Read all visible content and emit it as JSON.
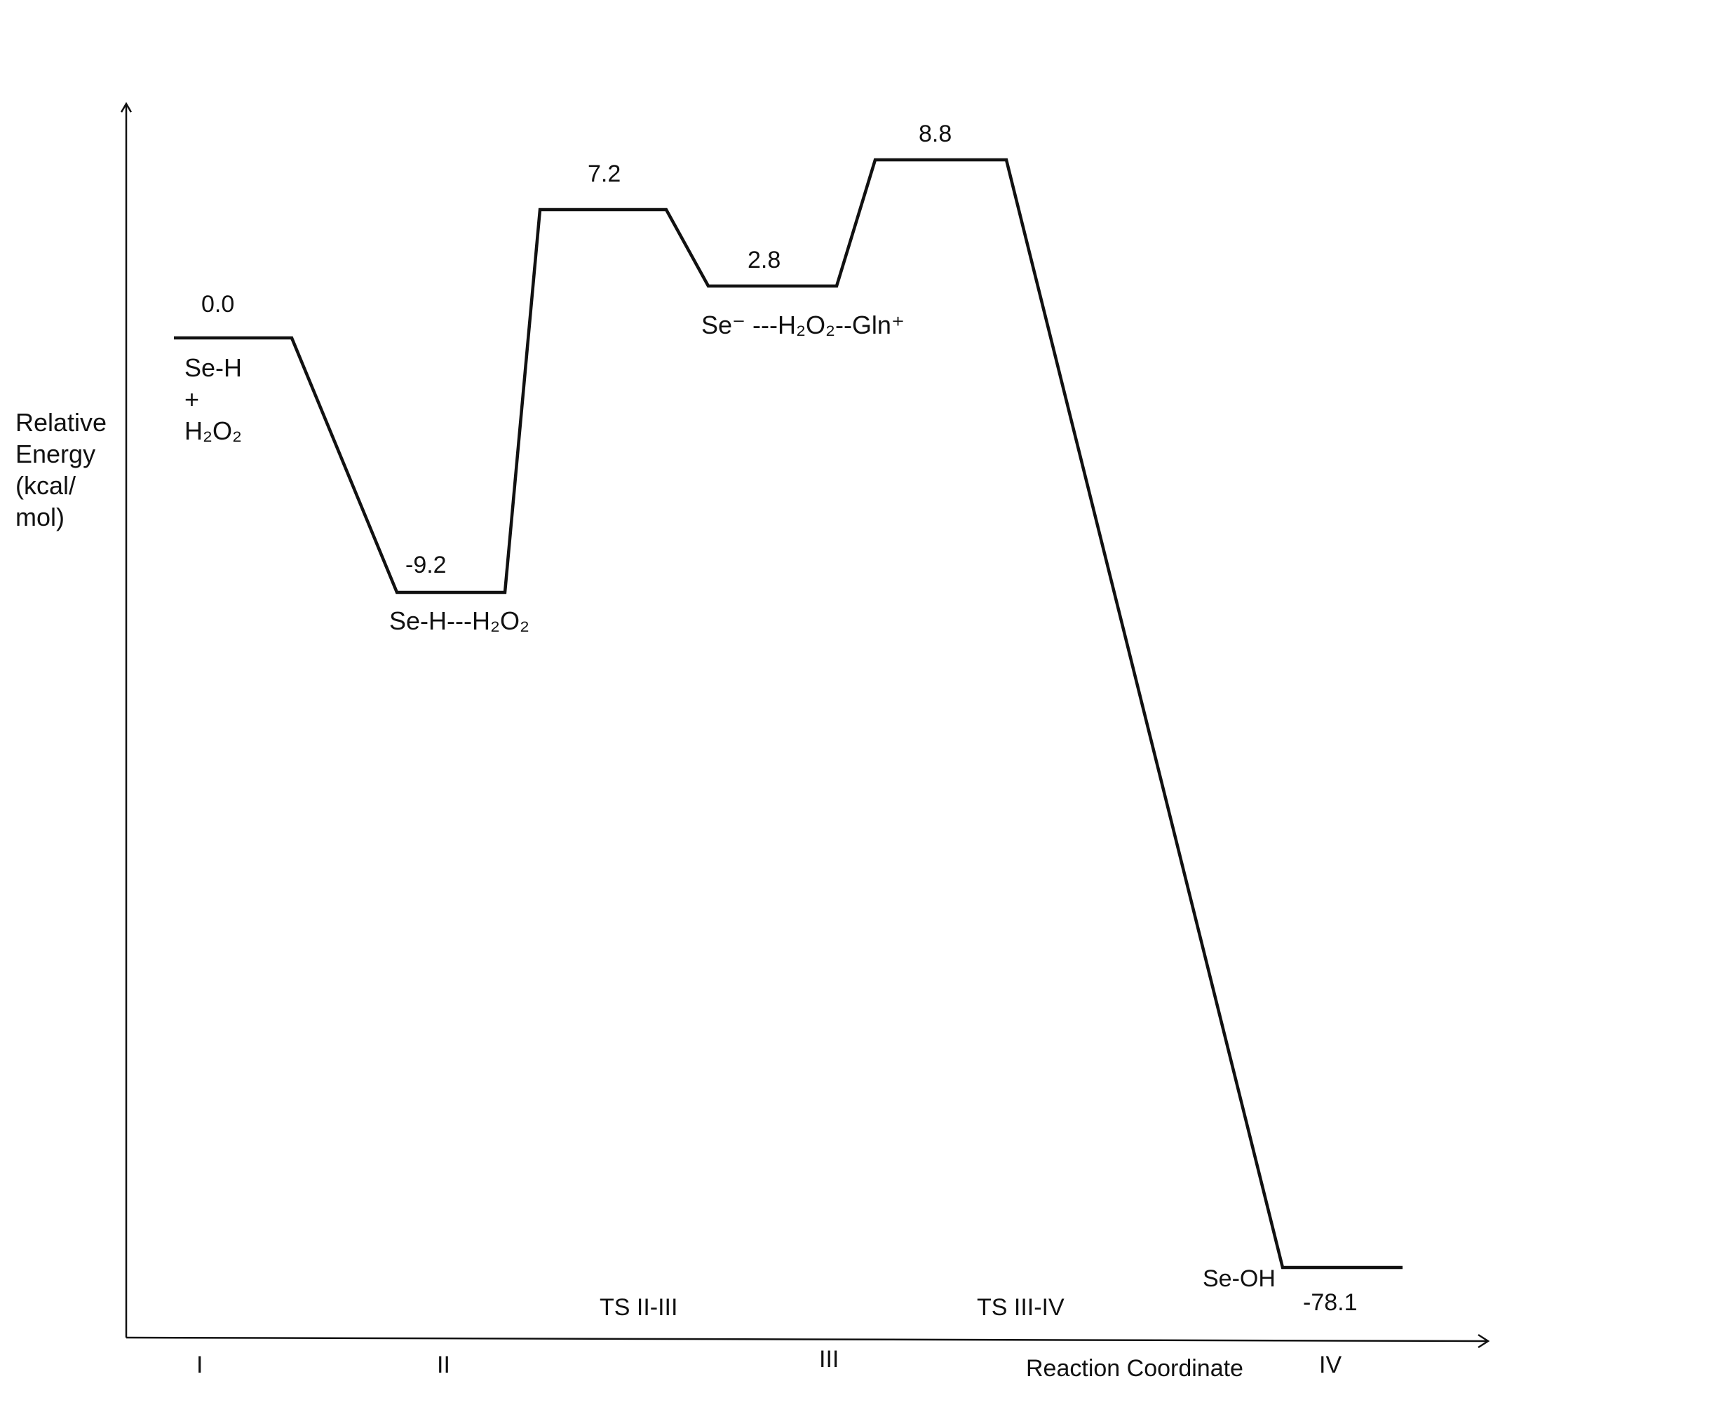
{
  "chart_data": {
    "type": "line",
    "xlabel": "Reaction Coordinate",
    "ylabel_lines": [
      "Relative",
      "Energy",
      "(kcal/",
      "mol)"
    ],
    "x_ticks": [
      "I",
      "II",
      "III",
      "IV"
    ],
    "ts_labels": [
      "TS II-III",
      "TS III-IV"
    ],
    "series": [
      {
        "points": [
          {
            "x": "I",
            "y": 0.0,
            "label": "0.0"
          },
          {
            "x": "II",
            "y": -9.2,
            "label": "-9.2"
          },
          {
            "x": "TS II-III",
            "y": 7.2,
            "label": "7.2"
          },
          {
            "x": "III",
            "y": 2.8,
            "label": "2.8"
          },
          {
            "x": "TS III-IV",
            "y": 8.8,
            "label": "8.8"
          },
          {
            "x": "IV",
            "y": -78.1,
            "label": "-78.1"
          }
        ]
      }
    ],
    "species": {
      "I_line1": "Se-H",
      "I_line2": "+",
      "I_line3": "H₂O₂",
      "II": "Se-H---H₂O₂",
      "III": "Se⁻ ---H₂O₂--Gln⁺",
      "IV": "Se-OH"
    },
    "line_color": "#111111"
  }
}
